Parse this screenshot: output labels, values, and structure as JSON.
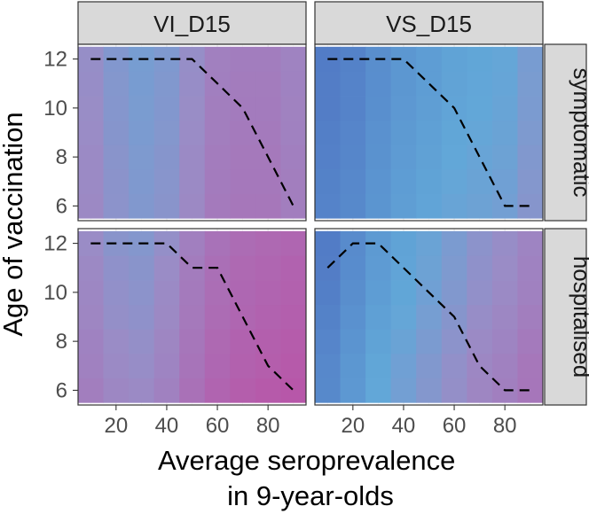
{
  "chart_data": {
    "type": "heatmap",
    "xlabel": "Average seroprevalence\nin 9-year-olds",
    "ylabel": "Age of vaccination",
    "xlim": [
      5,
      95
    ],
    "ylim": [
      5.4,
      12.6
    ],
    "x_ticks": [
      20,
      40,
      60,
      80
    ],
    "y_ticks": [
      6,
      8,
      10,
      12
    ],
    "grid": true,
    "columns": [
      "VI_D15",
      "VS_D15"
    ],
    "rows": [
      "symptomatic",
      "hospitalised"
    ],
    "colors": {
      "low": "#4f73c2",
      "mid": "#62a7d8",
      "high": "#c2449e",
      "neutral": "#9a8cc6",
      "strip_fill": "#d9d9d9"
    },
    "heatmap_x": [
      10,
      20,
      30,
      40,
      50,
      60,
      70,
      80,
      90
    ],
    "heatmap_y": [
      6,
      7,
      8,
      9,
      10,
      11,
      12
    ],
    "panels": [
      {
        "column": "VI_D15",
        "row": "symptomatic",
        "heat_columns": [
          0.55,
          0.48,
          0.44,
          0.47,
          0.55,
          0.64,
          0.66,
          0.66,
          0.62
        ],
        "heat_row_adjust": [
          0.02,
          0.015,
          0.01,
          0.0,
          -0.005,
          -0.01,
          -0.015
        ],
        "line": {
          "x": [
            10,
            20,
            30,
            40,
            50,
            55,
            60,
            70,
            80,
            90
          ],
          "y": [
            12,
            12,
            12,
            12,
            12,
            11.5,
            11,
            10,
            8,
            6
          ]
        }
      },
      {
        "column": "VS_D15",
        "row": "symptomatic",
        "heat_columns": [
          0.08,
          0.12,
          0.2,
          0.26,
          0.3,
          0.34,
          0.36,
          0.38,
          0.45
        ],
        "heat_row_adjust": [
          0.03,
          0.02,
          0.01,
          0.0,
          -0.01,
          -0.015,
          -0.02
        ],
        "line": {
          "x": [
            10,
            20,
            30,
            40,
            50,
            60,
            70,
            80,
            85,
            90
          ],
          "y": [
            12,
            12,
            12,
            12,
            11,
            10,
            8,
            6,
            6,
            6
          ]
        }
      },
      {
        "column": "VI_D15",
        "row": "hospitalised",
        "heat_columns": [
          0.58,
          0.52,
          0.5,
          0.56,
          0.66,
          0.74,
          0.78,
          0.8,
          0.82
        ],
        "heat_row_adjust": [
          0.06,
          0.04,
          0.03,
          0.01,
          0.0,
          -0.01,
          -0.03
        ],
        "line": {
          "x": [
            10,
            20,
            30,
            40,
            50,
            60,
            70,
            80,
            90
          ],
          "y": [
            12,
            12,
            12,
            12,
            11,
            11,
            9,
            7,
            6
          ]
        }
      },
      {
        "column": "VS_D15",
        "row": "hospitalised",
        "heat_columns": [
          0.1,
          0.2,
          0.3,
          0.36,
          0.42,
          0.48,
          0.54,
          0.58,
          0.64
        ],
        "heat_row_adjust": [
          0.05,
          0.04,
          0.02,
          0.0,
          -0.02,
          -0.03,
          -0.04
        ],
        "line": {
          "x": [
            10,
            20,
            30,
            40,
            50,
            60,
            70,
            80,
            85,
            90
          ],
          "y": [
            11,
            12,
            12,
            11,
            10,
            9,
            7,
            6,
            6,
            6
          ]
        }
      }
    ]
  }
}
